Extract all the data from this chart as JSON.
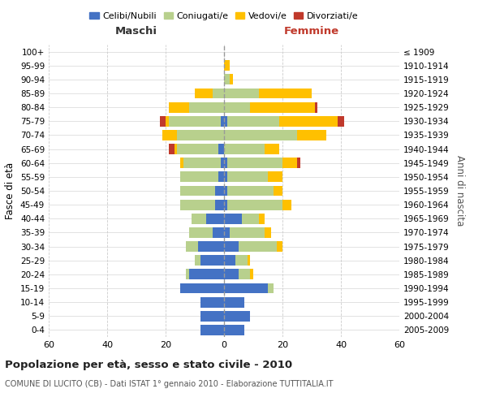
{
  "age_groups": [
    "0-4",
    "5-9",
    "10-14",
    "15-19",
    "20-24",
    "25-29",
    "30-34",
    "35-39",
    "40-44",
    "45-49",
    "50-54",
    "55-59",
    "60-64",
    "65-69",
    "70-74",
    "75-79",
    "80-84",
    "85-89",
    "90-94",
    "95-99",
    "100+"
  ],
  "birth_years": [
    "2005-2009",
    "2000-2004",
    "1995-1999",
    "1990-1994",
    "1985-1989",
    "1980-1984",
    "1975-1979",
    "1970-1974",
    "1965-1969",
    "1960-1964",
    "1955-1959",
    "1950-1954",
    "1945-1949",
    "1940-1944",
    "1935-1939",
    "1930-1934",
    "1925-1929",
    "1920-1924",
    "1915-1919",
    "1910-1914",
    "≤ 1909"
  ],
  "males": {
    "celibi": [
      8,
      8,
      8,
      15,
      12,
      8,
      9,
      4,
      6,
      3,
      3,
      2,
      1,
      2,
      0,
      1,
      0,
      0,
      0,
      0,
      0
    ],
    "coniugati": [
      0,
      0,
      0,
      0,
      1,
      2,
      4,
      8,
      5,
      12,
      12,
      13,
      13,
      14,
      16,
      18,
      12,
      4,
      0,
      0,
      0
    ],
    "vedovi": [
      0,
      0,
      0,
      0,
      0,
      0,
      0,
      0,
      0,
      0,
      0,
      0,
      1,
      1,
      5,
      1,
      7,
      6,
      0,
      0,
      0
    ],
    "divorziati": [
      0,
      0,
      0,
      0,
      0,
      0,
      0,
      0,
      0,
      0,
      0,
      0,
      0,
      2,
      0,
      2,
      0,
      0,
      0,
      0,
      0
    ]
  },
  "females": {
    "nubili": [
      7,
      9,
      7,
      15,
      5,
      4,
      5,
      2,
      6,
      1,
      1,
      1,
      1,
      0,
      0,
      1,
      0,
      0,
      0,
      0,
      0
    ],
    "coniugate": [
      0,
      0,
      0,
      2,
      4,
      4,
      13,
      12,
      6,
      19,
      16,
      14,
      19,
      14,
      25,
      18,
      9,
      12,
      2,
      0,
      0
    ],
    "vedove": [
      0,
      0,
      0,
      0,
      1,
      1,
      2,
      2,
      2,
      3,
      3,
      5,
      5,
      5,
      10,
      20,
      22,
      18,
      1,
      2,
      0
    ],
    "divorziate": [
      0,
      0,
      0,
      0,
      0,
      0,
      0,
      0,
      0,
      0,
      0,
      0,
      1,
      0,
      0,
      2,
      1,
      0,
      0,
      0,
      0
    ]
  },
  "colors": {
    "celibi": "#4472c4",
    "coniugati": "#b8d08d",
    "vedovi": "#ffc000",
    "divorziati": "#c0392b"
  },
  "title": "Popolazione per età, sesso e stato civile - 2010",
  "subtitle": "COMUNE DI LUCITO (CB) - Dati ISTAT 1° gennaio 2010 - Elaborazione TUTTITALIA.IT",
  "xlabel_left": "Maschi",
  "xlabel_right": "Femmine",
  "ylabel_left": "Fasce di età",
  "ylabel_right": "Anni di nascita",
  "xlim": 60,
  "legend_labels": [
    "Celibi/Nubili",
    "Coniugati/e",
    "Vedovi/e",
    "Divorziati/e"
  ],
  "background_color": "#ffffff",
  "grid_color": "#cccccc"
}
